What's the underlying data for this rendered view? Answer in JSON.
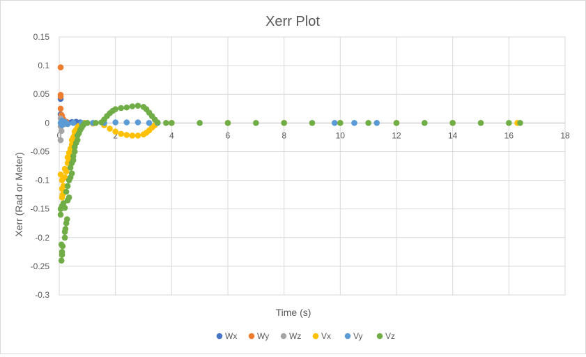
{
  "chart_data": {
    "type": "scatter",
    "title": "Xerr Plot",
    "xlabel": "Time (s)",
    "ylabel": "Xerr (Rad  or Meter)",
    "xlim": [
      0,
      18
    ],
    "ylim": [
      -0.3,
      0.15
    ],
    "x_ticks": [
      0,
      2,
      4,
      6,
      8,
      10,
      12,
      14,
      16,
      18
    ],
    "y_ticks": [
      0.15,
      0.1,
      0.05,
      0,
      -0.05,
      -0.1,
      -0.15,
      -0.2,
      -0.25,
      -0.3
    ],
    "y_tick_labels": [
      "0.15",
      "0.1",
      "0.05",
      "0",
      "-0.05",
      "-0.1",
      "-0.15",
      "-0.2",
      "-0.25",
      "-0.3"
    ],
    "grid": true,
    "legend_position": "bottom",
    "series": [
      {
        "name": "Wx",
        "color": "#4472c4",
        "points": [
          [
            0.05,
            0.042
          ],
          [
            0.05,
            0.015
          ],
          [
            0.1,
            0.006
          ],
          [
            0.15,
            0.003
          ],
          [
            0.2,
            0.002
          ],
          [
            0.3,
            0.001
          ],
          [
            0.45,
            0.0015
          ],
          [
            0.6,
            0.002
          ],
          [
            0.75,
            0.001
          ],
          [
            0.9,
            0.0
          ]
        ]
      },
      {
        "name": "Wy",
        "color": "#ed7d31",
        "points": [
          [
            0.05,
            0.097
          ],
          [
            0.05,
            0.049
          ],
          [
            0.05,
            0.046
          ],
          [
            0.05,
            0.025
          ],
          [
            0.08,
            0.014
          ],
          [
            0.1,
            0.012
          ],
          [
            0.15,
            0.006
          ],
          [
            0.25,
            0.002
          ]
        ]
      },
      {
        "name": "Wz",
        "color": "#a5a5a5",
        "points": [
          [
            0.05,
            -0.006
          ],
          [
            0.08,
            -0.014
          ],
          [
            0.05,
            -0.03
          ],
          [
            0.05,
            0.008
          ],
          [
            0.1,
            0.002
          ],
          [
            0.2,
            -0.002
          ]
        ]
      },
      {
        "name": "Vx",
        "color": "#ffc000",
        "points": [
          [
            0.05,
            -0.09
          ],
          [
            0.1,
            -0.1
          ],
          [
            0.1,
            -0.115
          ],
          [
            0.12,
            -0.125
          ],
          [
            0.1,
            -0.13
          ],
          [
            0.15,
            -0.11
          ],
          [
            0.2,
            -0.095
          ],
          [
            0.2,
            -0.08
          ],
          [
            0.25,
            -0.085
          ],
          [
            0.3,
            -0.07
          ],
          [
            0.3,
            -0.06
          ],
          [
            0.35,
            -0.065
          ],
          [
            0.35,
            -0.052
          ],
          [
            0.4,
            -0.045
          ],
          [
            0.45,
            -0.038
          ],
          [
            0.45,
            -0.03
          ],
          [
            0.5,
            -0.025
          ],
          [
            0.55,
            -0.02
          ],
          [
            0.55,
            -0.015
          ],
          [
            0.6,
            -0.012
          ],
          [
            0.65,
            -0.008
          ],
          [
            0.7,
            -0.005
          ],
          [
            0.8,
            -0.002
          ],
          [
            0.9,
            0.0
          ],
          [
            1.2,
            -0.001
          ],
          [
            1.6,
            -0.004
          ],
          [
            1.8,
            -0.01
          ],
          [
            2.0,
            -0.015
          ],
          [
            2.2,
            -0.019
          ],
          [
            2.4,
            -0.021
          ],
          [
            2.6,
            -0.022
          ],
          [
            2.8,
            -0.022
          ],
          [
            3.0,
            -0.02
          ],
          [
            3.1,
            -0.017
          ],
          [
            3.2,
            -0.013
          ],
          [
            3.3,
            -0.008
          ],
          [
            3.4,
            -0.004
          ],
          [
            3.5,
            0.0
          ],
          [
            4.0,
            0.0
          ],
          [
            6.0,
            0.0
          ],
          [
            8.0,
            0.0
          ],
          [
            10.0,
            0.0
          ],
          [
            12.0,
            0.0
          ],
          [
            14.0,
            0.0
          ],
          [
            16.3,
            0.0
          ]
        ]
      },
      {
        "name": "Vy",
        "color": "#5b9bd5",
        "points": [
          [
            0.05,
            0.0
          ],
          [
            0.1,
            0.004
          ],
          [
            0.1,
            -0.004
          ],
          [
            0.2,
            0.002
          ],
          [
            0.3,
            -0.002
          ],
          [
            0.5,
            0.0
          ],
          [
            0.8,
            0.0
          ],
          [
            1.2,
            0.0
          ],
          [
            1.6,
            0.0
          ],
          [
            2.0,
            0.001
          ],
          [
            2.4,
            0.001
          ],
          [
            2.8,
            0.001
          ],
          [
            3.2,
            0.0
          ],
          [
            3.5,
            0.0
          ],
          [
            9.8,
            0.0
          ],
          [
            10.5,
            0.0
          ],
          [
            11.3,
            0.0
          ]
        ]
      },
      {
        "name": "Vz",
        "color": "#70ad47",
        "points": [
          [
            0.08,
            -0.24
          ],
          [
            0.1,
            -0.23
          ],
          [
            0.1,
            -0.225
          ],
          [
            0.08,
            -0.212
          ],
          [
            0.12,
            -0.215
          ],
          [
            0.2,
            -0.2
          ],
          [
            0.2,
            -0.19
          ],
          [
            0.22,
            -0.185
          ],
          [
            0.25,
            -0.175
          ],
          [
            0.28,
            -0.168
          ],
          [
            0.05,
            -0.16
          ],
          [
            0.05,
            -0.15
          ],
          [
            0.1,
            -0.145
          ],
          [
            0.15,
            -0.14
          ],
          [
            0.2,
            -0.148
          ],
          [
            0.3,
            -0.135
          ],
          [
            0.35,
            -0.13
          ],
          [
            0.25,
            -0.12
          ],
          [
            0.3,
            -0.11
          ],
          [
            0.35,
            -0.1
          ],
          [
            0.4,
            -0.095
          ],
          [
            0.45,
            -0.088
          ],
          [
            0.4,
            -0.078
          ],
          [
            0.45,
            -0.07
          ],
          [
            0.5,
            -0.065
          ],
          [
            0.5,
            -0.058
          ],
          [
            0.55,
            -0.05
          ],
          [
            0.55,
            -0.042
          ],
          [
            0.6,
            -0.035
          ],
          [
            0.65,
            -0.03
          ],
          [
            0.65,
            -0.022
          ],
          [
            0.7,
            -0.018
          ],
          [
            0.75,
            -0.012
          ],
          [
            0.8,
            -0.008
          ],
          [
            0.85,
            -0.004
          ],
          [
            0.9,
            -0.001
          ],
          [
            1.0,
            0.0
          ],
          [
            1.3,
            0.0
          ],
          [
            1.5,
            0.001
          ],
          [
            1.6,
            0.006
          ],
          [
            1.7,
            0.012
          ],
          [
            1.8,
            0.017
          ],
          [
            1.9,
            0.021
          ],
          [
            2.0,
            0.024
          ],
          [
            2.2,
            0.026
          ],
          [
            2.4,
            0.027
          ],
          [
            2.6,
            0.029
          ],
          [
            2.8,
            0.03
          ],
          [
            3.0,
            0.028
          ],
          [
            3.1,
            0.024
          ],
          [
            3.2,
            0.018
          ],
          [
            3.3,
            0.012
          ],
          [
            3.4,
            0.006
          ],
          [
            3.5,
            0.001
          ],
          [
            3.8,
            0.0
          ],
          [
            4.0,
            0.0
          ],
          [
            5.0,
            0.0
          ],
          [
            6.0,
            0.0
          ],
          [
            7.0,
            0.0
          ],
          [
            8.0,
            0.0
          ],
          [
            9.0,
            0.0
          ],
          [
            10.0,
            0.0
          ],
          [
            11.0,
            0.0
          ],
          [
            12.0,
            0.0
          ],
          [
            13.0,
            0.0
          ],
          [
            14.0,
            0.0
          ],
          [
            15.0,
            0.0
          ],
          [
            16.0,
            0.0
          ],
          [
            16.4,
            0.0
          ]
        ]
      }
    ]
  }
}
